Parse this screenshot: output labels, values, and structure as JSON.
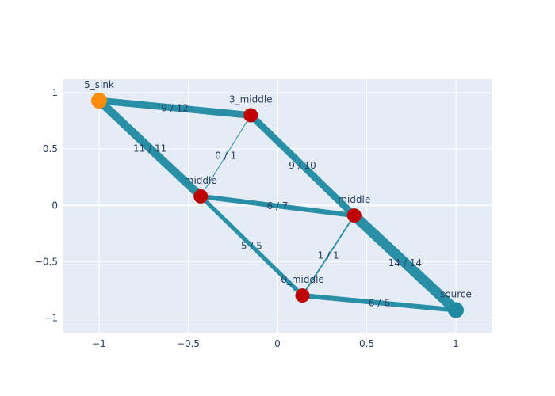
{
  "chart_data": {
    "type": "scatter",
    "grid": true,
    "xlim": [
      -1.2,
      1.2
    ],
    "ylim": [
      -1.13,
      1.12
    ],
    "x_ticks": [
      -1,
      -0.5,
      0,
      0.5,
      1
    ],
    "y_ticks": [
      -1,
      -0.5,
      0,
      0.5,
      1
    ],
    "x_tick_labels": [
      "−1",
      "−0.5",
      "0",
      "0.5",
      "1"
    ],
    "y_tick_labels": [
      "−1",
      "−0.5",
      "0",
      "0.5",
      "1"
    ],
    "colors": {
      "plot_bg": "#e5ecf6",
      "grid": "#ffffff",
      "edge": "#1f8ba3",
      "middle_node": "#c00000",
      "sink_node": "#ff8c0a",
      "source_node": "#1f8ba3"
    },
    "nodes": [
      {
        "id": "sink",
        "label": "5_sink",
        "x": -1.0,
        "y": 0.93,
        "kind": "sink"
      },
      {
        "id": "n3",
        "label": "3_middle",
        "x": -0.15,
        "y": 0.8,
        "kind": "middle"
      },
      {
        "id": "nA",
        "label": "middle",
        "x": -0.43,
        "y": 0.08,
        "kind": "middle"
      },
      {
        "id": "nB",
        "label": "middle",
        "x": 0.43,
        "y": -0.09,
        "kind": "middle"
      },
      {
        "id": "n0",
        "label": "0_middle",
        "x": 0.14,
        "y": -0.8,
        "kind": "middle"
      },
      {
        "id": "src",
        "label": "source",
        "x": 1.0,
        "y": -0.93,
        "kind": "source"
      }
    ],
    "edges": [
      {
        "from": "n3",
        "to": "sink",
        "flow": 9,
        "capacity": 12,
        "label": "9 / 12"
      },
      {
        "from": "nA",
        "to": "sink",
        "flow": 11,
        "capacity": 11,
        "label": "11 / 11"
      },
      {
        "from": "nA",
        "to": "n3",
        "flow": 0,
        "capacity": 1,
        "label": "0 / 1"
      },
      {
        "from": "nB",
        "to": "n3",
        "flow": 9,
        "capacity": 10,
        "label": "9 / 10"
      },
      {
        "from": "nB",
        "to": "nA",
        "flow": 6,
        "capacity": 7,
        "label": "6 / 7"
      },
      {
        "from": "n0",
        "to": "nA",
        "flow": 5,
        "capacity": 5,
        "label": "5 / 5"
      },
      {
        "from": "n0",
        "to": "nB",
        "flow": 1,
        "capacity": 1,
        "label": "1 / 1"
      },
      {
        "from": "src",
        "to": "nB",
        "flow": 14,
        "capacity": 14,
        "label": "14 / 14"
      },
      {
        "from": "src",
        "to": "n0",
        "flow": 6,
        "capacity": 6,
        "label": "6 / 6"
      }
    ]
  }
}
